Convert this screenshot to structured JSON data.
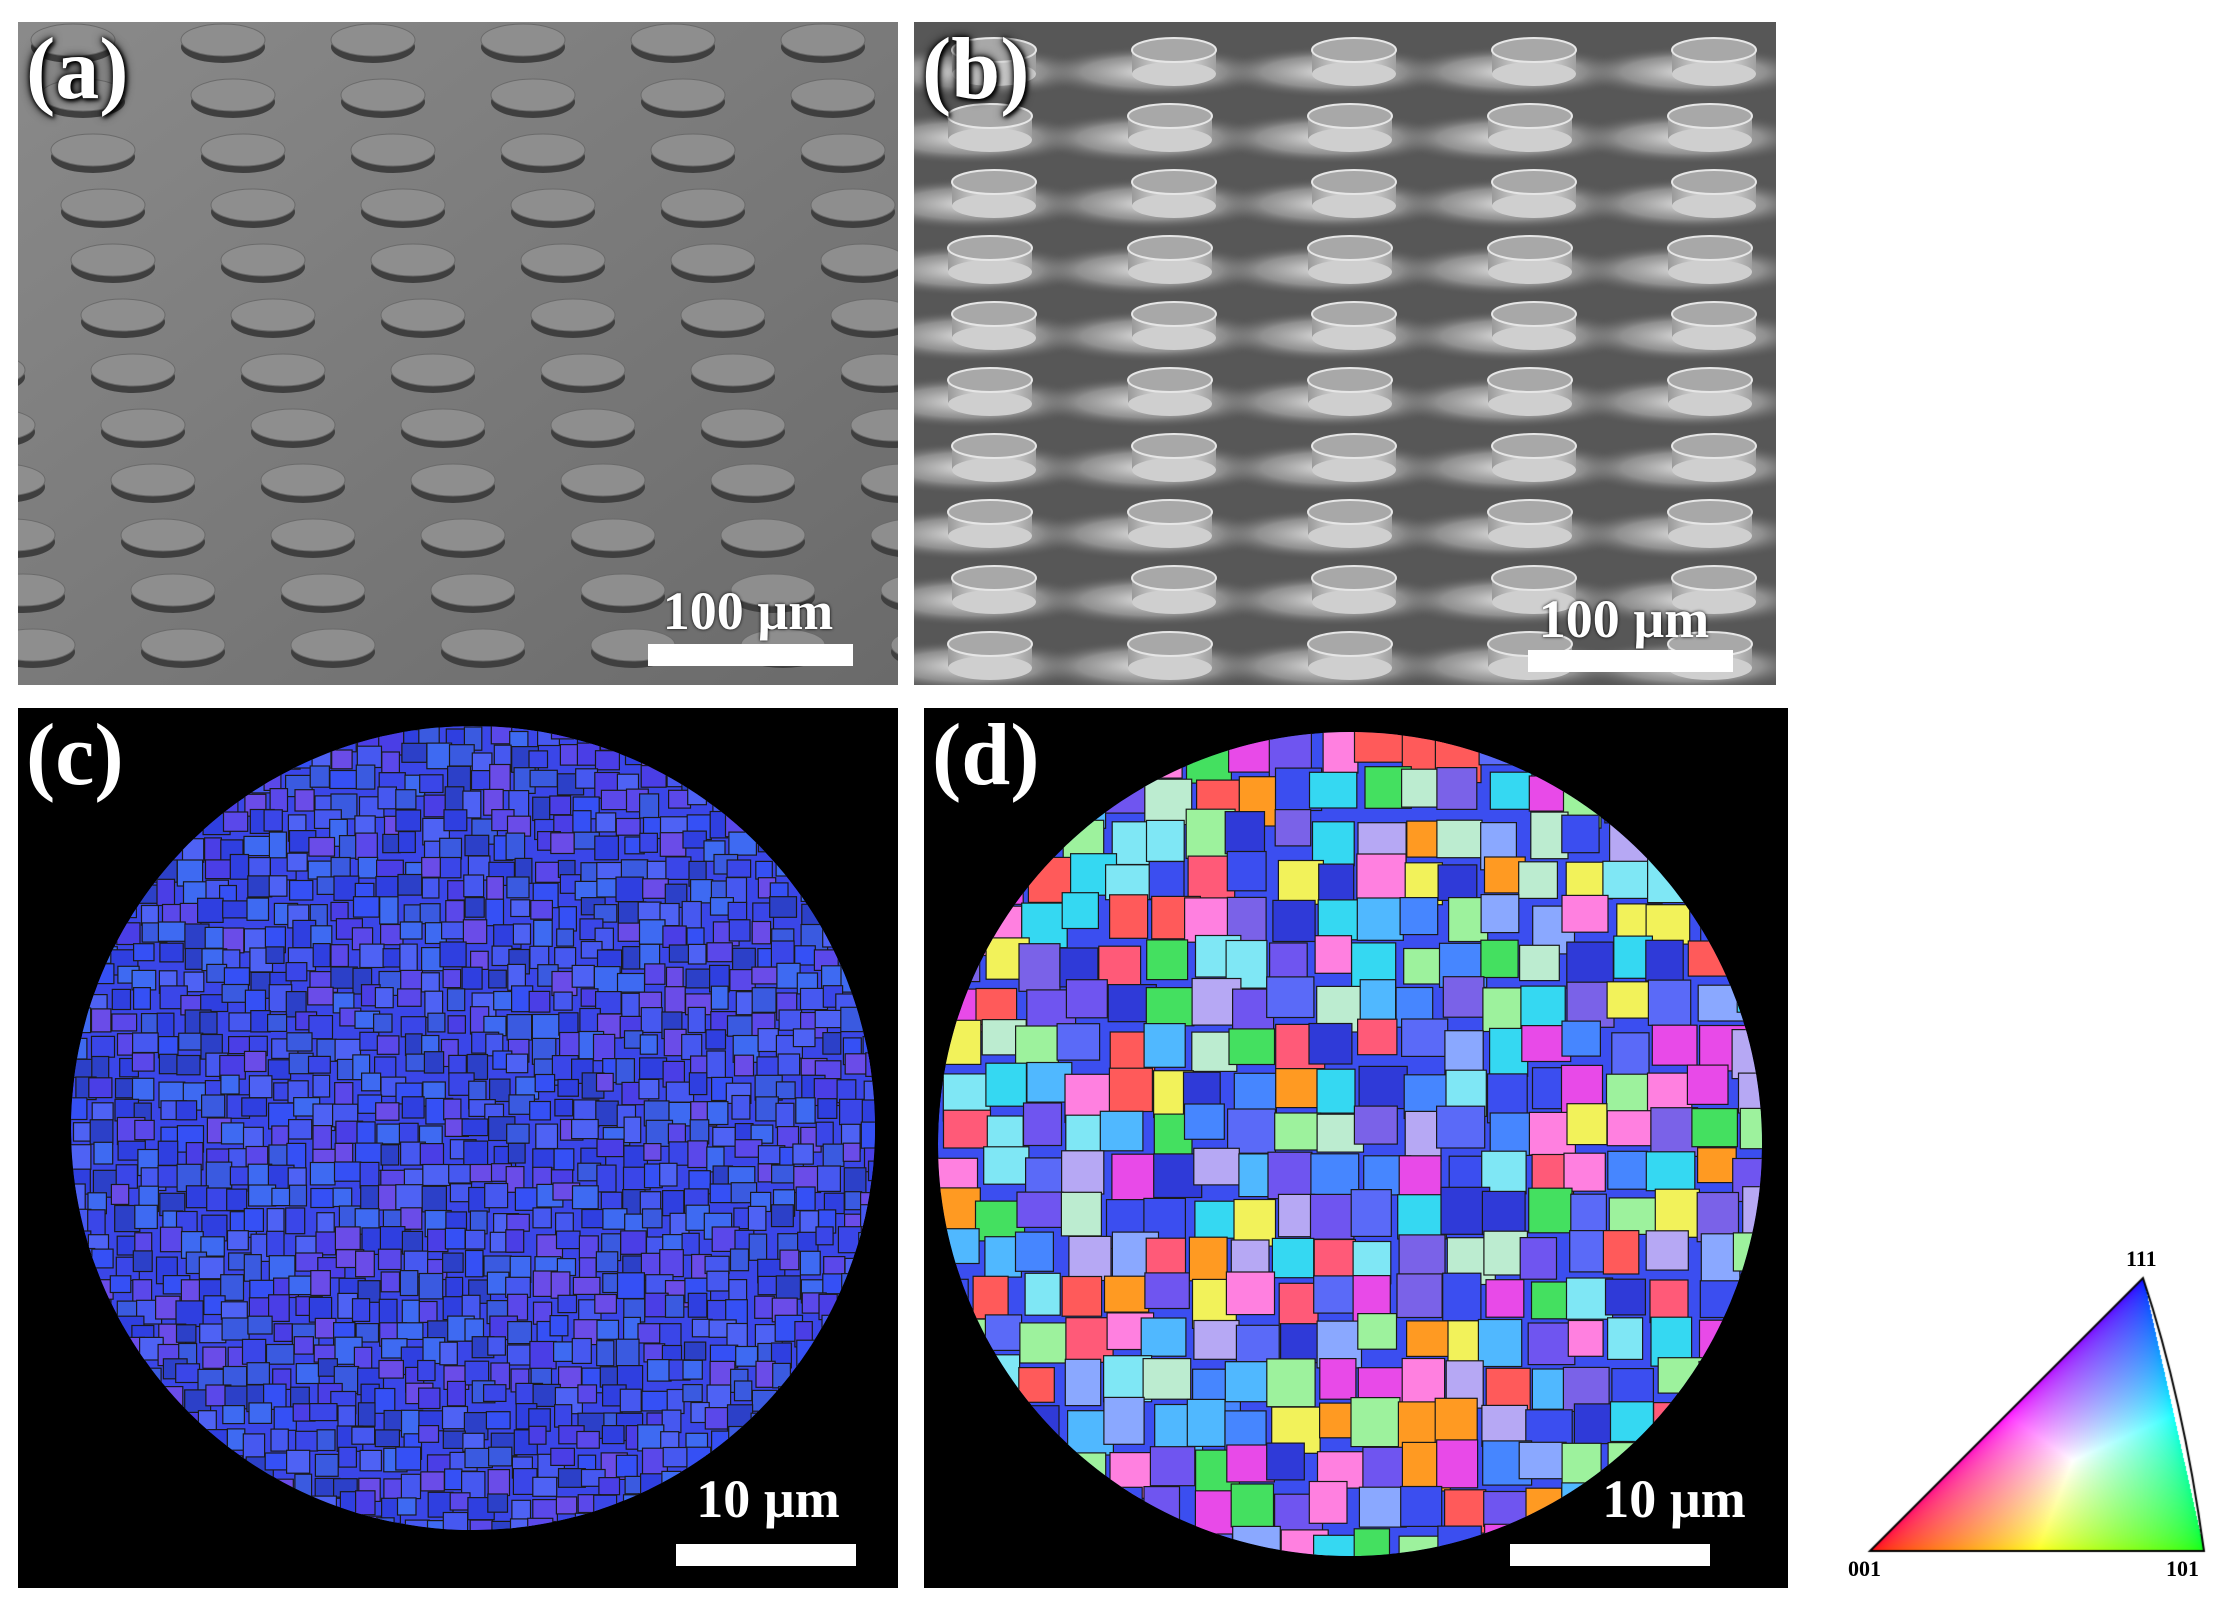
{
  "panels": {
    "a": {
      "label": "(a)",
      "scale_bar": "100 µm"
    },
    "b": {
      "label": "(b)",
      "scale_bar": "100 µm"
    },
    "c": {
      "label": "(c)",
      "scale_bar": "10 µm"
    },
    "d": {
      "label": "(d)",
      "scale_bar": "10 µm"
    }
  },
  "ipf_legend": {
    "top": "111",
    "bottom_left": "001",
    "bottom_right": "101",
    "colors": {
      "001": "#ff0000",
      "101": "#00ff00",
      "111": "#0000ff"
    }
  },
  "colors": {
    "sem_a_bg": "#7a7a7a",
    "sem_b_bg": "#5a5a5a",
    "ebsd_bg": "#000000",
    "grain_boundary": "#1a1a1a"
  }
}
